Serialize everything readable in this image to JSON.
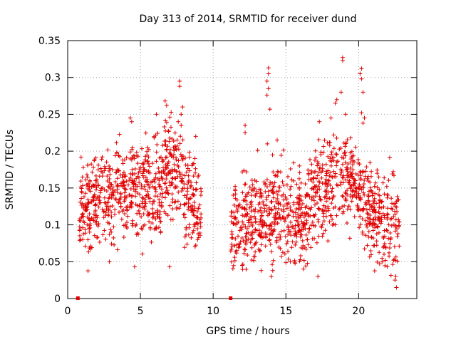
{
  "chart_data": {
    "type": "scatter",
    "title": "Day 313 of 2014, SRMTID for receiver dund",
    "xlabel": "GPS time / hours",
    "ylabel": "SRMTID / TECUs",
    "xlim": [
      0,
      24
    ],
    "ylim": [
      0,
      0.35
    ],
    "x_ticks": [
      0,
      5,
      10,
      15,
      20
    ],
    "y_ticks": [
      0,
      0.05,
      0.1,
      0.15,
      0.2,
      0.25,
      0.3,
      0.35
    ],
    "x_tick_labels": [
      "0",
      "5",
      "10",
      "15",
      "20"
    ],
    "y_tick_labels": [
      "0",
      "0.05",
      "0.1",
      "0.15",
      "0.2",
      "0.25",
      "0.3",
      "0.35"
    ],
    "grid": true,
    "marker": "+",
    "color": "#e00000",
    "zero_points": [
      {
        "x": 0.7,
        "y": 0.0
      },
      {
        "x": 11.2,
        "y": 0.0
      }
    ],
    "series_outline": [
      {
        "segment": "early",
        "x_range": [
          0.8,
          9.2
        ],
        "typical_y_range": [
          0.05,
          0.2
        ],
        "max_y": 0.295,
        "min_y": 0.04
      },
      {
        "segment": "late",
        "x_range": [
          11.2,
          22.8
        ],
        "typical_y_range": [
          0.05,
          0.2
        ],
        "max_y": 0.327,
        "min_y": 0.015
      }
    ]
  }
}
